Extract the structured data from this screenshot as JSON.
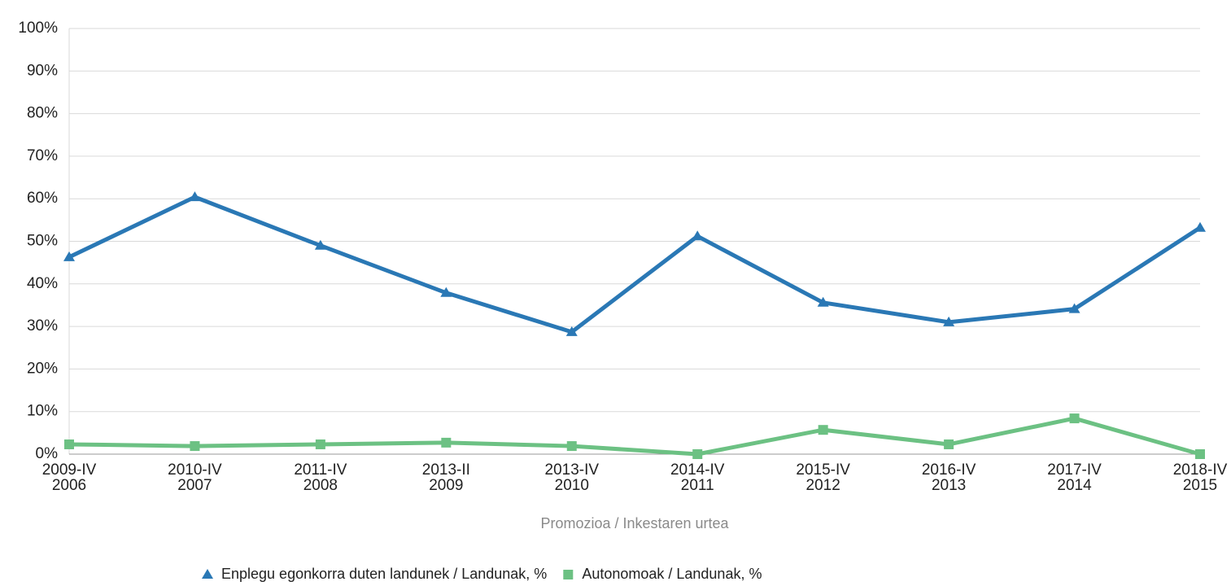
{
  "chart_data": {
    "type": "line",
    "x_label": "Promozioa / Inkestaren urtea",
    "categories": [
      [
        "2009-IV",
        "2006"
      ],
      [
        "2010-IV",
        "2007"
      ],
      [
        "2011-IV",
        "2008"
      ],
      [
        "2013-II",
        "2009"
      ],
      [
        "2013-IV",
        "2010"
      ],
      [
        "2014-IV",
        "2011"
      ],
      [
        "2015-IV",
        "2012"
      ],
      [
        "2016-IV",
        "2013"
      ],
      [
        "2017-IV",
        "2014"
      ],
      [
        "2018-IV",
        "2015"
      ]
    ],
    "series": [
      {
        "name": "Enplegu egonkorra duten landunek / Landunak, %",
        "color": "#2a78b5",
        "marker": "triangle",
        "values": [
          46.3,
          60.4,
          49.0,
          37.9,
          28.7,
          51.2,
          35.6,
          31.0,
          34.1,
          53.2
        ]
      },
      {
        "name": "Autonomoak / Landunak, %",
        "color": "#6cc183",
        "marker": "square",
        "values": [
          2.3,
          1.9,
          2.3,
          2.7,
          1.9,
          0,
          5.7,
          2.3,
          8.4,
          0
        ]
      }
    ],
    "ylim": [
      0,
      100
    ],
    "yticks": [
      {
        "value": 0,
        "label": "0%"
      },
      {
        "value": 10,
        "label": "10%"
      },
      {
        "value": 20,
        "label": "20%"
      },
      {
        "value": 30,
        "label": "30%"
      },
      {
        "value": 40,
        "label": "40%"
      },
      {
        "value": 50,
        "label": "50%"
      },
      {
        "value": 60,
        "label": "60%"
      },
      {
        "value": 70,
        "label": "70%"
      },
      {
        "value": 80,
        "label": "80%"
      },
      {
        "value": 90,
        "label": "90%"
      },
      {
        "value": 100,
        "label": "100%"
      }
    ],
    "grid": true,
    "legend": "bottom"
  }
}
